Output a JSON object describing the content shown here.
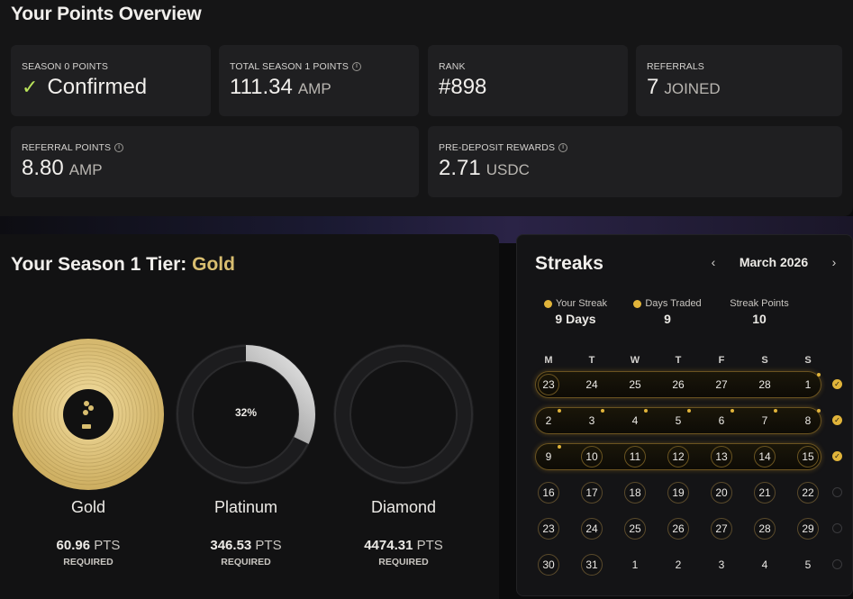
{
  "overview": {
    "title": "Your Points Overview",
    "stats": [
      {
        "label": "SEASON 0 POINTS",
        "value": "Confirmed",
        "unit": "",
        "info": false,
        "check": true
      },
      {
        "label": "TOTAL SEASON 1 POINTS",
        "value": "111.34",
        "unit": "AMP",
        "info": true,
        "check": false
      },
      {
        "label": "RANK",
        "value": "#898",
        "unit": "",
        "info": false,
        "check": false
      },
      {
        "label": "REFERRALS",
        "value": "7",
        "unit": "JOINED",
        "info": false,
        "check": false
      },
      {
        "label": "REFERRAL POINTS",
        "value": "8.80",
        "unit": "AMP",
        "info": true,
        "check": false
      },
      {
        "label": "PRE-DEPOSIT REWARDS",
        "value": "2.71",
        "unit": "USDC",
        "info": true,
        "check": false
      }
    ]
  },
  "tier": {
    "title_prefix": "Your Season 1 Tier:",
    "title_tier": "Gold",
    "medals": [
      {
        "name": "Gold",
        "points": "60.96",
        "pts_unit": "PTS",
        "required": "REQUIRED",
        "kind": "vinyl",
        "progress": 1.0
      },
      {
        "name": "Platinum",
        "points": "346.53",
        "pts_unit": "PTS",
        "required": "REQUIRED",
        "kind": "ring",
        "progress": 0.32,
        "progress_label": "32%"
      },
      {
        "name": "Diamond",
        "points": "4474.31",
        "pts_unit": "PTS",
        "required": "REQUIRED",
        "kind": "ring",
        "progress": 0
      }
    ]
  },
  "streaks": {
    "title": "Streaks",
    "month": "March 2026",
    "prev_icon": "chevron-left-icon",
    "next_icon": "chevron-right-icon",
    "summary": [
      {
        "label": "Your Streak",
        "value": "9 Days",
        "dot": true
      },
      {
        "label": "Days Traded",
        "value": "9",
        "dot": true
      },
      {
        "label": "Streak Points",
        "value": "10",
        "dot": false
      }
    ],
    "weekdays": [
      "M",
      "T",
      "W",
      "T",
      "F",
      "S",
      "S"
    ],
    "weeks": [
      {
        "days": [
          "23",
          "24",
          "25",
          "26",
          "27",
          "28",
          "1"
        ],
        "band": true,
        "done": true,
        "rings": [
          0
        ],
        "dots": [
          6
        ]
      },
      {
        "days": [
          "2",
          "3",
          "4",
          "5",
          "6",
          "7",
          "8"
        ],
        "band": true,
        "done": true,
        "rings": [],
        "dots": [
          0,
          1,
          2,
          3,
          4,
          5,
          6
        ]
      },
      {
        "days": [
          "9",
          "10",
          "11",
          "12",
          "13",
          "14",
          "15"
        ],
        "band": true,
        "done": true,
        "rings": [
          1,
          2,
          3,
          4,
          5,
          6
        ],
        "dots": [
          0
        ]
      },
      {
        "days": [
          "16",
          "17",
          "18",
          "19",
          "20",
          "21",
          "22"
        ],
        "band": false,
        "done": false,
        "rings": [
          0,
          1,
          2,
          3,
          4,
          5,
          6
        ],
        "dots": []
      },
      {
        "days": [
          "23",
          "24",
          "25",
          "26",
          "27",
          "28",
          "29"
        ],
        "band": false,
        "done": false,
        "rings": [
          0,
          1,
          2,
          3,
          4,
          5,
          6
        ],
        "dots": []
      },
      {
        "days": [
          "30",
          "31",
          "1",
          "2",
          "3",
          "4",
          "5"
        ],
        "band": false,
        "done": false,
        "rings": [
          0,
          1
        ],
        "dots": []
      }
    ],
    "colors": {
      "gold": "#e1b43a",
      "accent_text": "#d9be70",
      "check_green": "#b9e35a"
    }
  }
}
